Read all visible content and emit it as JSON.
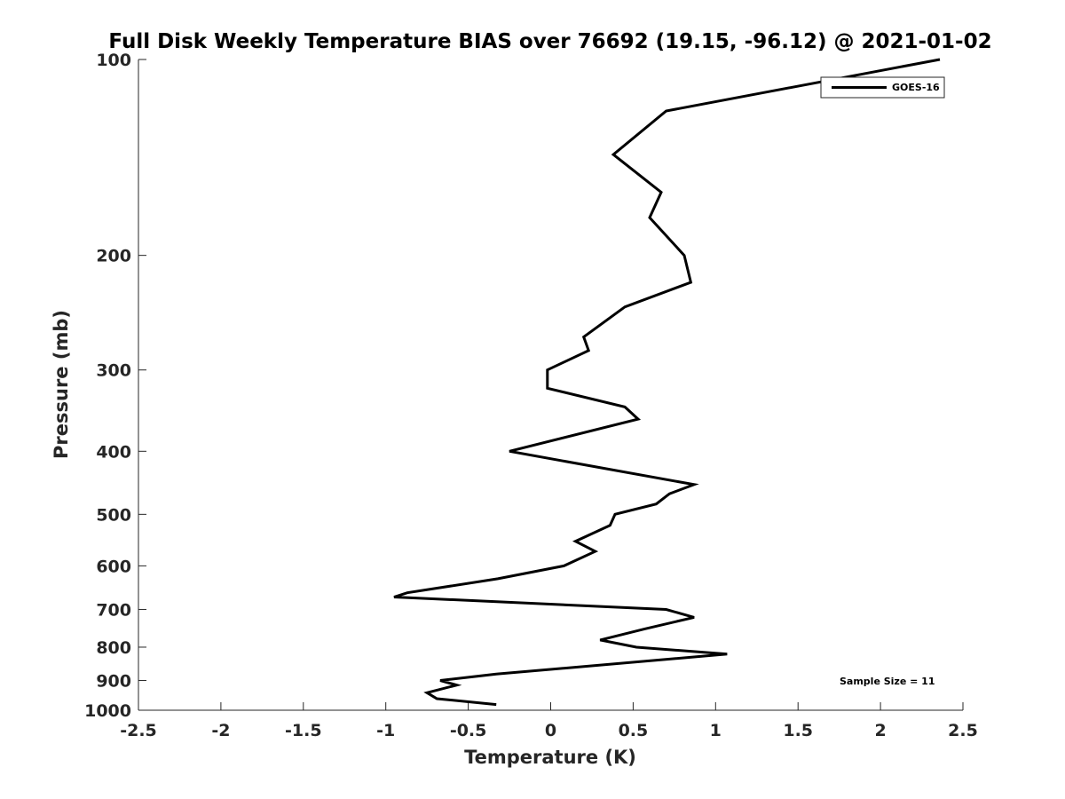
{
  "chart_data": {
    "type": "line",
    "title": "Full Disk Weekly Temperature BIAS over 76692 (19.15, -96.12) @ 2021-01-02",
    "xlabel": "Temperature (K)",
    "ylabel": "Pressure (mb)",
    "xlim": [
      -2.5,
      2.5
    ],
    "ylim": [
      100,
      1000
    ],
    "y_scale": "log",
    "y_reversed": true,
    "x_ticks": [
      "-2.5",
      "-2",
      "-1.5",
      "-1",
      "-0.5",
      "0",
      "0.5",
      "1",
      "1.5",
      "2",
      "2.5"
    ],
    "x_tick_values": [
      -2.5,
      -2,
      -1.5,
      -1,
      -0.5,
      0,
      0.5,
      1,
      1.5,
      2,
      2.5
    ],
    "y_ticks": [
      "100",
      "200",
      "300",
      "400",
      "500",
      "600",
      "700",
      "800",
      "900",
      "1000"
    ],
    "y_tick_values": [
      100,
      200,
      300,
      400,
      500,
      600,
      700,
      800,
      900,
      1000
    ],
    "legend_position": "top-right",
    "annotation": "Sample Size = 11",
    "line_color": "#000000",
    "series": [
      {
        "name": "GOES-16",
        "x": [
          2.36,
          0.7,
          0.38,
          0.67,
          0.6,
          0.81,
          0.85,
          0.45,
          0.2,
          0.23,
          -0.02,
          -0.02,
          0.45,
          0.53,
          -0.25,
          0.87,
          0.72,
          0.64,
          0.39,
          0.36,
          0.15,
          0.27,
          0.08,
          -0.32,
          -0.87,
          -0.95,
          0.7,
          0.87,
          0.57,
          0.3,
          0.52,
          1.07,
          -0.33,
          -0.67,
          -0.57,
          -0.75,
          -0.69,
          -0.33
        ],
        "y": [
          100,
          120,
          140,
          160,
          175,
          200,
          220,
          240,
          267,
          280,
          300,
          320,
          342,
          357,
          400,
          450,
          465,
          482,
          500,
          520,
          550,
          570,
          600,
          628,
          660,
          670,
          700,
          720,
          750,
          780,
          800,
          820,
          880,
          900,
          915,
          940,
          960,
          980
        ]
      }
    ]
  }
}
